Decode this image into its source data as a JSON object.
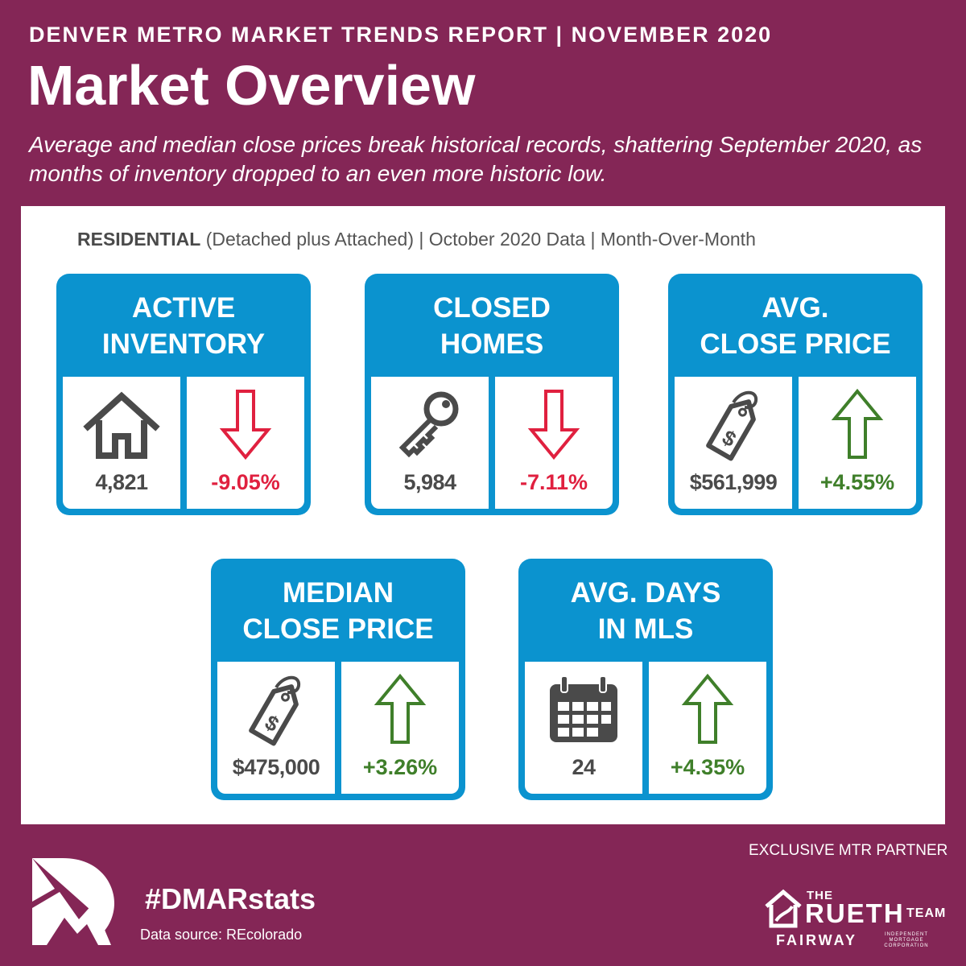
{
  "header": {
    "report_title": "DENVER METRO MARKET TRENDS REPORT  |  NOVEMBER 2020",
    "title": "Market Overview",
    "subtitle": "Average and median close prices break historical records, shattering September 2020, as months of inventory dropped to an even more historic low."
  },
  "panel": {
    "heading_bold": "RESIDENTIAL",
    "heading_rest": " (Detached plus Attached) | October 2020 Data | Month-Over-Month"
  },
  "cards": [
    {
      "title_line1": "ACTIVE",
      "title_line2": "INVENTORY",
      "icon": "house-icon",
      "value": "4,821",
      "change": "-9.05%",
      "direction": "down"
    },
    {
      "title_line1": "CLOSED",
      "title_line2": "HOMES",
      "icon": "key-icon",
      "value": "5,984",
      "change": "-7.11%",
      "direction": "down"
    },
    {
      "title_line1": "AVG.",
      "title_line2": "CLOSE PRICE",
      "icon": "price-tag-icon",
      "value": "$561,999",
      "change": "+4.55%",
      "direction": "up"
    },
    {
      "title_line1": "MEDIAN",
      "title_line2": "CLOSE PRICE",
      "icon": "price-tag-icon",
      "value": "$475,000",
      "change": "+3.26%",
      "direction": "up"
    },
    {
      "title_line1": "AVG. DAYS",
      "title_line2": "IN MLS",
      "icon": "calendar-icon",
      "value": "24",
      "change": "+4.35%",
      "direction": "up"
    }
  ],
  "footer": {
    "exclusive_partner": "EXCLUSIVE MTR PARTNER",
    "hashtag": "#DMARstats",
    "data_source": "Data source: REcolorado",
    "partner_the": "THE",
    "partner_rueth": "RUETH",
    "partner_team": "TEAM",
    "partner_fairway": "FAIRWAY",
    "partner_imc": "INDEPENDENT MORTGAGE CORPORATION"
  },
  "colors": {
    "background": "#842656",
    "card_blue": "#0b93cf",
    "down_red": "#e0203f",
    "up_green": "#3f7f2a",
    "icon_gray": "#4a4a4a"
  }
}
